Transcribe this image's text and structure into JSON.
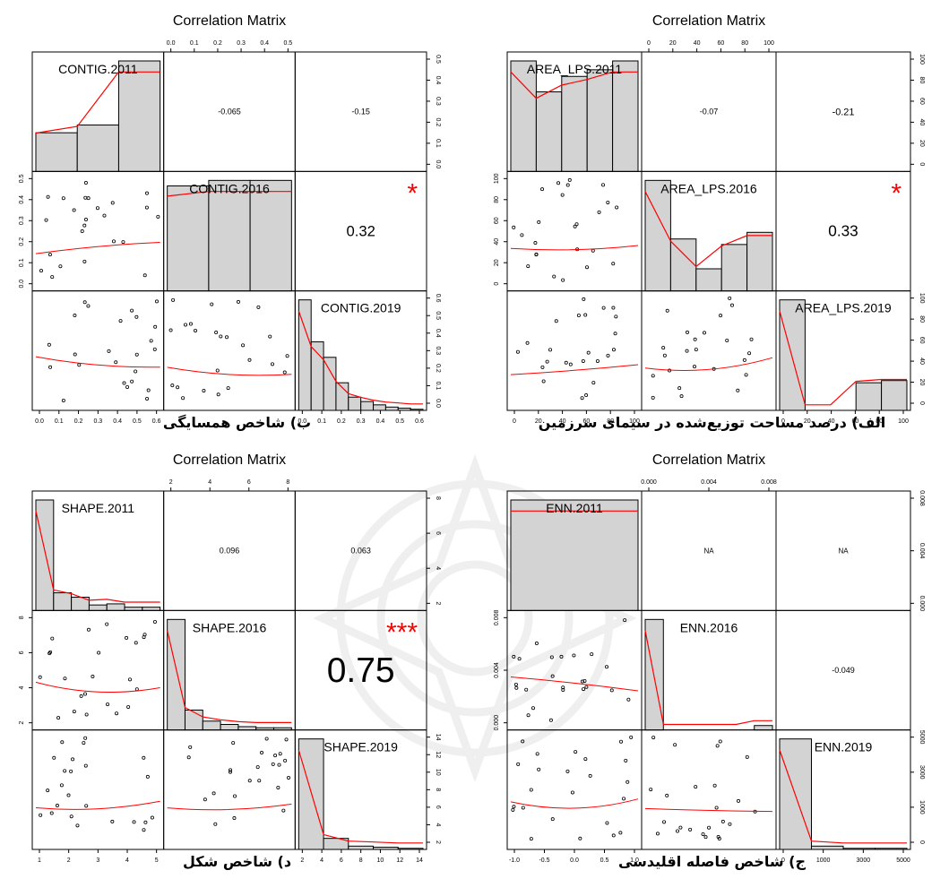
{
  "colors": {
    "bar": "#d3d3d3",
    "line": "#ff0000",
    "star": "#ff0000",
    "frame": "#000000"
  },
  "chart_data": [
    {
      "type": "scatter-matrix",
      "title": "Correlation Matrix",
      "caption": "ب) شاخص همسایگی",
      "variables": [
        "CONTIG.2011",
        "CONTIG.2016",
        "CONTIG.2019"
      ],
      "correlations": [
        {
          "row": 0,
          "col": 1,
          "value": "-0.065",
          "stars": ""
        },
        {
          "row": 0,
          "col": 2,
          "value": "-0.15",
          "stars": ""
        },
        {
          "row": 1,
          "col": 2,
          "value": "0.32",
          "stars": "*"
        }
      ],
      "bottom_ticks": [
        [
          "0.0",
          "0.1",
          "0.2",
          "0.3",
          "0.4",
          "0.5",
          "0.6"
        ],
        [],
        [
          "0.0",
          "0.1",
          "0.2",
          "0.3",
          "0.4",
          "0.5",
          "0.6"
        ]
      ],
      "top_ticks": [
        "0.0",
        "0.1",
        "0.2",
        "0.3",
        "0.4",
        "0.5"
      ],
      "left_ticks": [
        "0.0",
        "0.1",
        "0.2",
        "0.3",
        "0.4",
        "0.5"
      ],
      "right_ticks": [
        "0.0",
        "0.1",
        "0.2",
        "0.3",
        "0.4",
        "0.5",
        "0.6"
      ],
      "histograms": [
        [
          0.35,
          0.42,
          1.0
        ],
        [
          0.95,
          1.0,
          1.0
        ],
        [
          1.0,
          0.62,
          0.48,
          0.25,
          0.12,
          0.08,
          0.05,
          0.03,
          0.02,
          0.01
        ]
      ]
    },
    {
      "type": "scatter-matrix",
      "title": "Correlation Matrix",
      "caption": "الف) درصد مساحت توزیع‌شده در سیمای سرزمین",
      "variables": [
        "AREA_LPS.2011",
        "AREA_LPS.2016",
        "AREA_LPS.2019"
      ],
      "correlations": [
        {
          "row": 0,
          "col": 1,
          "value": "-0.07",
          "stars": ""
        },
        {
          "row": 0,
          "col": 2,
          "value": "-0.21",
          "stars": ""
        },
        {
          "row": 1,
          "col": 2,
          "value": "0.33",
          "stars": "*"
        }
      ],
      "bottom_ticks": [
        [
          "0",
          "20",
          "40",
          "60",
          "80",
          "100"
        ],
        [],
        [
          "0",
          "20",
          "40",
          "60",
          "80",
          "100"
        ]
      ],
      "top_ticks": [
        "0",
        "20",
        "40",
        "60",
        "80",
        "100"
      ],
      "left_ticks": [
        "0",
        "20",
        "40",
        "60",
        "80",
        "100"
      ],
      "right_ticks": [
        "0",
        "20",
        "40",
        "60",
        "80",
        "100"
      ],
      "histograms": [
        [
          1.0,
          0.72,
          0.86,
          0.92,
          1.0
        ],
        [
          1.0,
          0.47,
          0.2,
          0.42,
          0.53
        ],
        [
          1.0,
          0.0,
          0.0,
          0.25,
          0.27
        ]
      ]
    },
    {
      "type": "scatter-matrix",
      "title": "Correlation Matrix",
      "caption": "د) شاخص شکل",
      "variables": [
        "SHAPE.2011",
        "SHAPE.2016",
        "SHAPE.2019"
      ],
      "correlations": [
        {
          "row": 0,
          "col": 1,
          "value": "0.096",
          "stars": ""
        },
        {
          "row": 0,
          "col": 2,
          "value": "0.063",
          "stars": ""
        },
        {
          "row": 1,
          "col": 2,
          "value": "0.75",
          "stars": "***"
        }
      ],
      "bottom_ticks": [
        [
          "1",
          "2",
          "3",
          "4",
          "5"
        ],
        [],
        [
          "2",
          "4",
          "6",
          "8",
          "10",
          "12",
          "14"
        ]
      ],
      "top_ticks": [
        "2",
        "4",
        "6",
        "8"
      ],
      "left_ticks": [
        "2",
        "4",
        "6",
        "8"
      ],
      "right_ticks": [
        "2",
        "4",
        "6",
        "8",
        "10",
        "12",
        "14"
      ],
      "histograms": [
        [
          1.0,
          0.16,
          0.12,
          0.05,
          0.06,
          0.03,
          0.03
        ],
        [
          1.0,
          0.18,
          0.08,
          0.05,
          0.03,
          0.02,
          0.02
        ],
        [
          1.0,
          0.1,
          0.03,
          0.02,
          0.01
        ]
      ]
    },
    {
      "type": "scatter-matrix",
      "title": "Correlation Matrix",
      "caption": "ج) شاخص فاصله اقلیدسی",
      "variables": [
        "ENN.2011",
        "ENN.2016",
        "ENN.2019"
      ],
      "correlations": [
        {
          "row": 0,
          "col": 1,
          "value": "NA",
          "stars": ""
        },
        {
          "row": 0,
          "col": 2,
          "value": "NA",
          "stars": ""
        },
        {
          "row": 1,
          "col": 2,
          "value": "-0.049",
          "stars": ""
        }
      ],
      "bottom_ticks": [
        [
          "-1.0",
          "-0.5",
          "0.0",
          "0.5",
          "1.0"
        ],
        [],
        [
          "0",
          "1000",
          "3000",
          "5000"
        ]
      ],
      "top_ticks": [
        "0.000",
        "0.004",
        "0.008"
      ],
      "left_ticks": [
        "0.000",
        "0.004",
        "0.008"
      ],
      "right_ticks": [
        "0",
        "1000",
        "3000",
        "5000"
      ],
      "histograms": [
        [
          1.0
        ],
        [
          1.0,
          0.0,
          0.0,
          0.0,
          0.0,
          0.0,
          0.04
        ],
        [
          1.0,
          0.03,
          0.01,
          0.01
        ]
      ]
    }
  ]
}
